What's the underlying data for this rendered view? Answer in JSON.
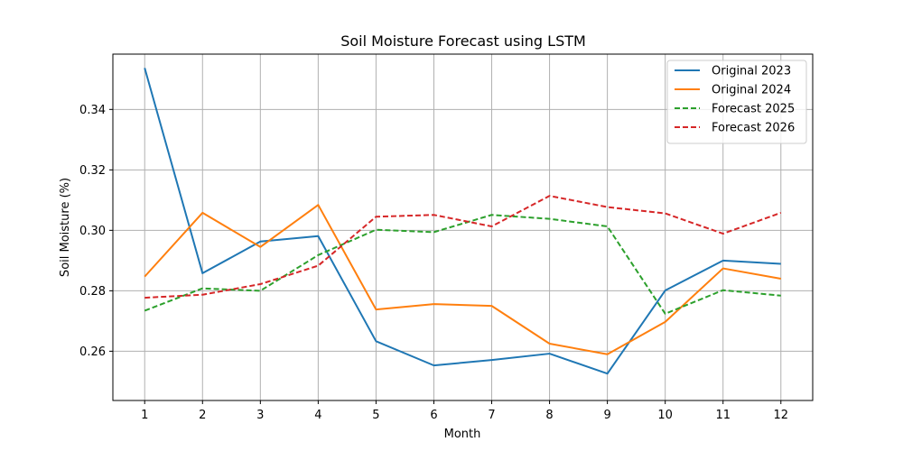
{
  "chart_data": {
    "type": "line",
    "title": "Soil Moisture Forecast using LSTM",
    "xlabel": "Month",
    "ylabel": "Soil Moisture (%)",
    "x": [
      1,
      2,
      3,
      4,
      5,
      6,
      7,
      8,
      9,
      10,
      11,
      12
    ],
    "xlim": [
      0.45,
      12.55
    ],
    "ylim": [
      0.2437,
      0.3583
    ],
    "xticks": [
      "1",
      "2",
      "3",
      "4",
      "5",
      "6",
      "7",
      "8",
      "9",
      "10",
      "11",
      "12"
    ],
    "yticks": [
      "0.26",
      "0.28",
      "0.30",
      "0.32",
      "0.34"
    ],
    "grid": true,
    "legend_position": "top-right",
    "series": [
      {
        "name": "Original 2023",
        "color": "#1f77b4",
        "style": "solid",
        "values": [
          0.3537,
          0.2858,
          0.2963,
          0.2981,
          0.2633,
          0.2553,
          0.2571,
          0.2592,
          0.2526,
          0.2801,
          0.29,
          0.2889
        ]
      },
      {
        "name": "Original 2024",
        "color": "#ff7f0e",
        "style": "solid",
        "values": [
          0.2847,
          0.3058,
          0.2945,
          0.3084,
          0.2738,
          0.2756,
          0.275,
          0.2625,
          0.259,
          0.2697,
          0.2874,
          0.284
        ]
      },
      {
        "name": "Forecast 2025",
        "color": "#2ca02c",
        "style": "dashed",
        "values": [
          0.2734,
          0.2808,
          0.28,
          0.2918,
          0.3002,
          0.2994,
          0.3051,
          0.3038,
          0.3013,
          0.2724,
          0.2802,
          0.2784
        ]
      },
      {
        "name": "Forecast 2026",
        "color": "#d62728",
        "style": "dashed",
        "values": [
          0.2777,
          0.2787,
          0.2822,
          0.2883,
          0.3045,
          0.3051,
          0.3013,
          0.3114,
          0.3077,
          0.3056,
          0.2989,
          0.3058
        ]
      }
    ]
  }
}
